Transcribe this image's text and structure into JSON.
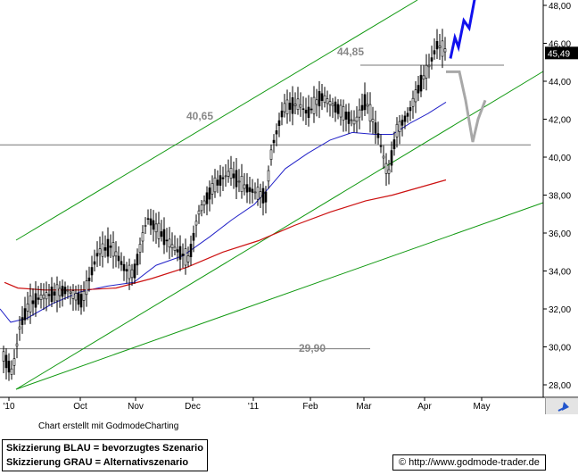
{
  "chart_data": {
    "type": "candlestick",
    "y_ticks": [
      "48,00",
      "46,00",
      "44,00",
      "42,00",
      "40,00",
      "38,00",
      "36,00",
      "34,00",
      "32,00",
      "30,00",
      "28,00"
    ],
    "y_tick_values": [
      48,
      46,
      44,
      42,
      40,
      38,
      36,
      34,
      32,
      30,
      28
    ],
    "x_ticks": [
      "'10",
      "Oct",
      "Nov",
      "Dec",
      "'11",
      "Feb",
      "Mar",
      "Apr",
      "May"
    ],
    "last_price": "45,49",
    "levels": [
      {
        "label": "44,85",
        "value": 44.85
      },
      {
        "label": "40,65",
        "value": 40.65
      },
      {
        "label": "29,90",
        "value": 29.9
      }
    ],
    "colors": {
      "ma_fast": "#2323c8",
      "ma_slow": "#cc1010",
      "trend": "#119911",
      "scenario_blue": "#1111ee",
      "scenario_grey": "#a8a8a8",
      "level_line": "#777777"
    }
  },
  "footer": {
    "credit": "Chart erstellt mit GodmodeCharting",
    "legend_blue": "Skizzierung BLAU = bevorzugtes Szenario",
    "legend_grey": "Skizzierung GRAU = Alternativszenario",
    "url": "© http://www.godmode-trader.de"
  }
}
